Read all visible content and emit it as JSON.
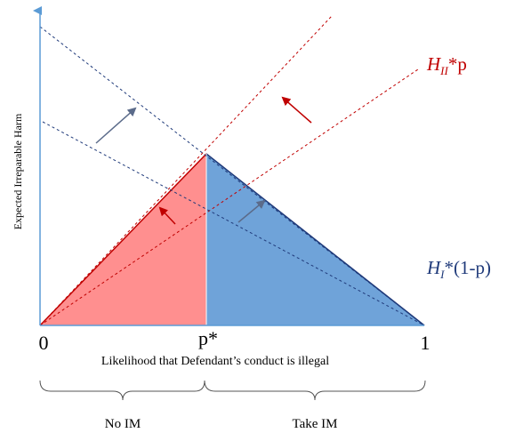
{
  "diagram": {
    "y_axis_label": "Expected Irreparable Harm",
    "x_axis_label": "Likelihood that Defendant’s conduct is illegal",
    "tick_zero": "0",
    "tick_pstar": "p*",
    "tick_one": "1",
    "line_hii": {
      "main": "H",
      "sub": "II",
      "suffix": "*p",
      "color": "#c00000"
    },
    "line_hi": {
      "main": "H",
      "sub": "I",
      "suffix": "*(1-p)",
      "color": "#1f3a7a"
    },
    "region_left_color": "#ff8f8f",
    "region_right_color": "#6fa3d9",
    "brace_left_label": "No IM",
    "brace_right_label": "Take IM"
  }
}
